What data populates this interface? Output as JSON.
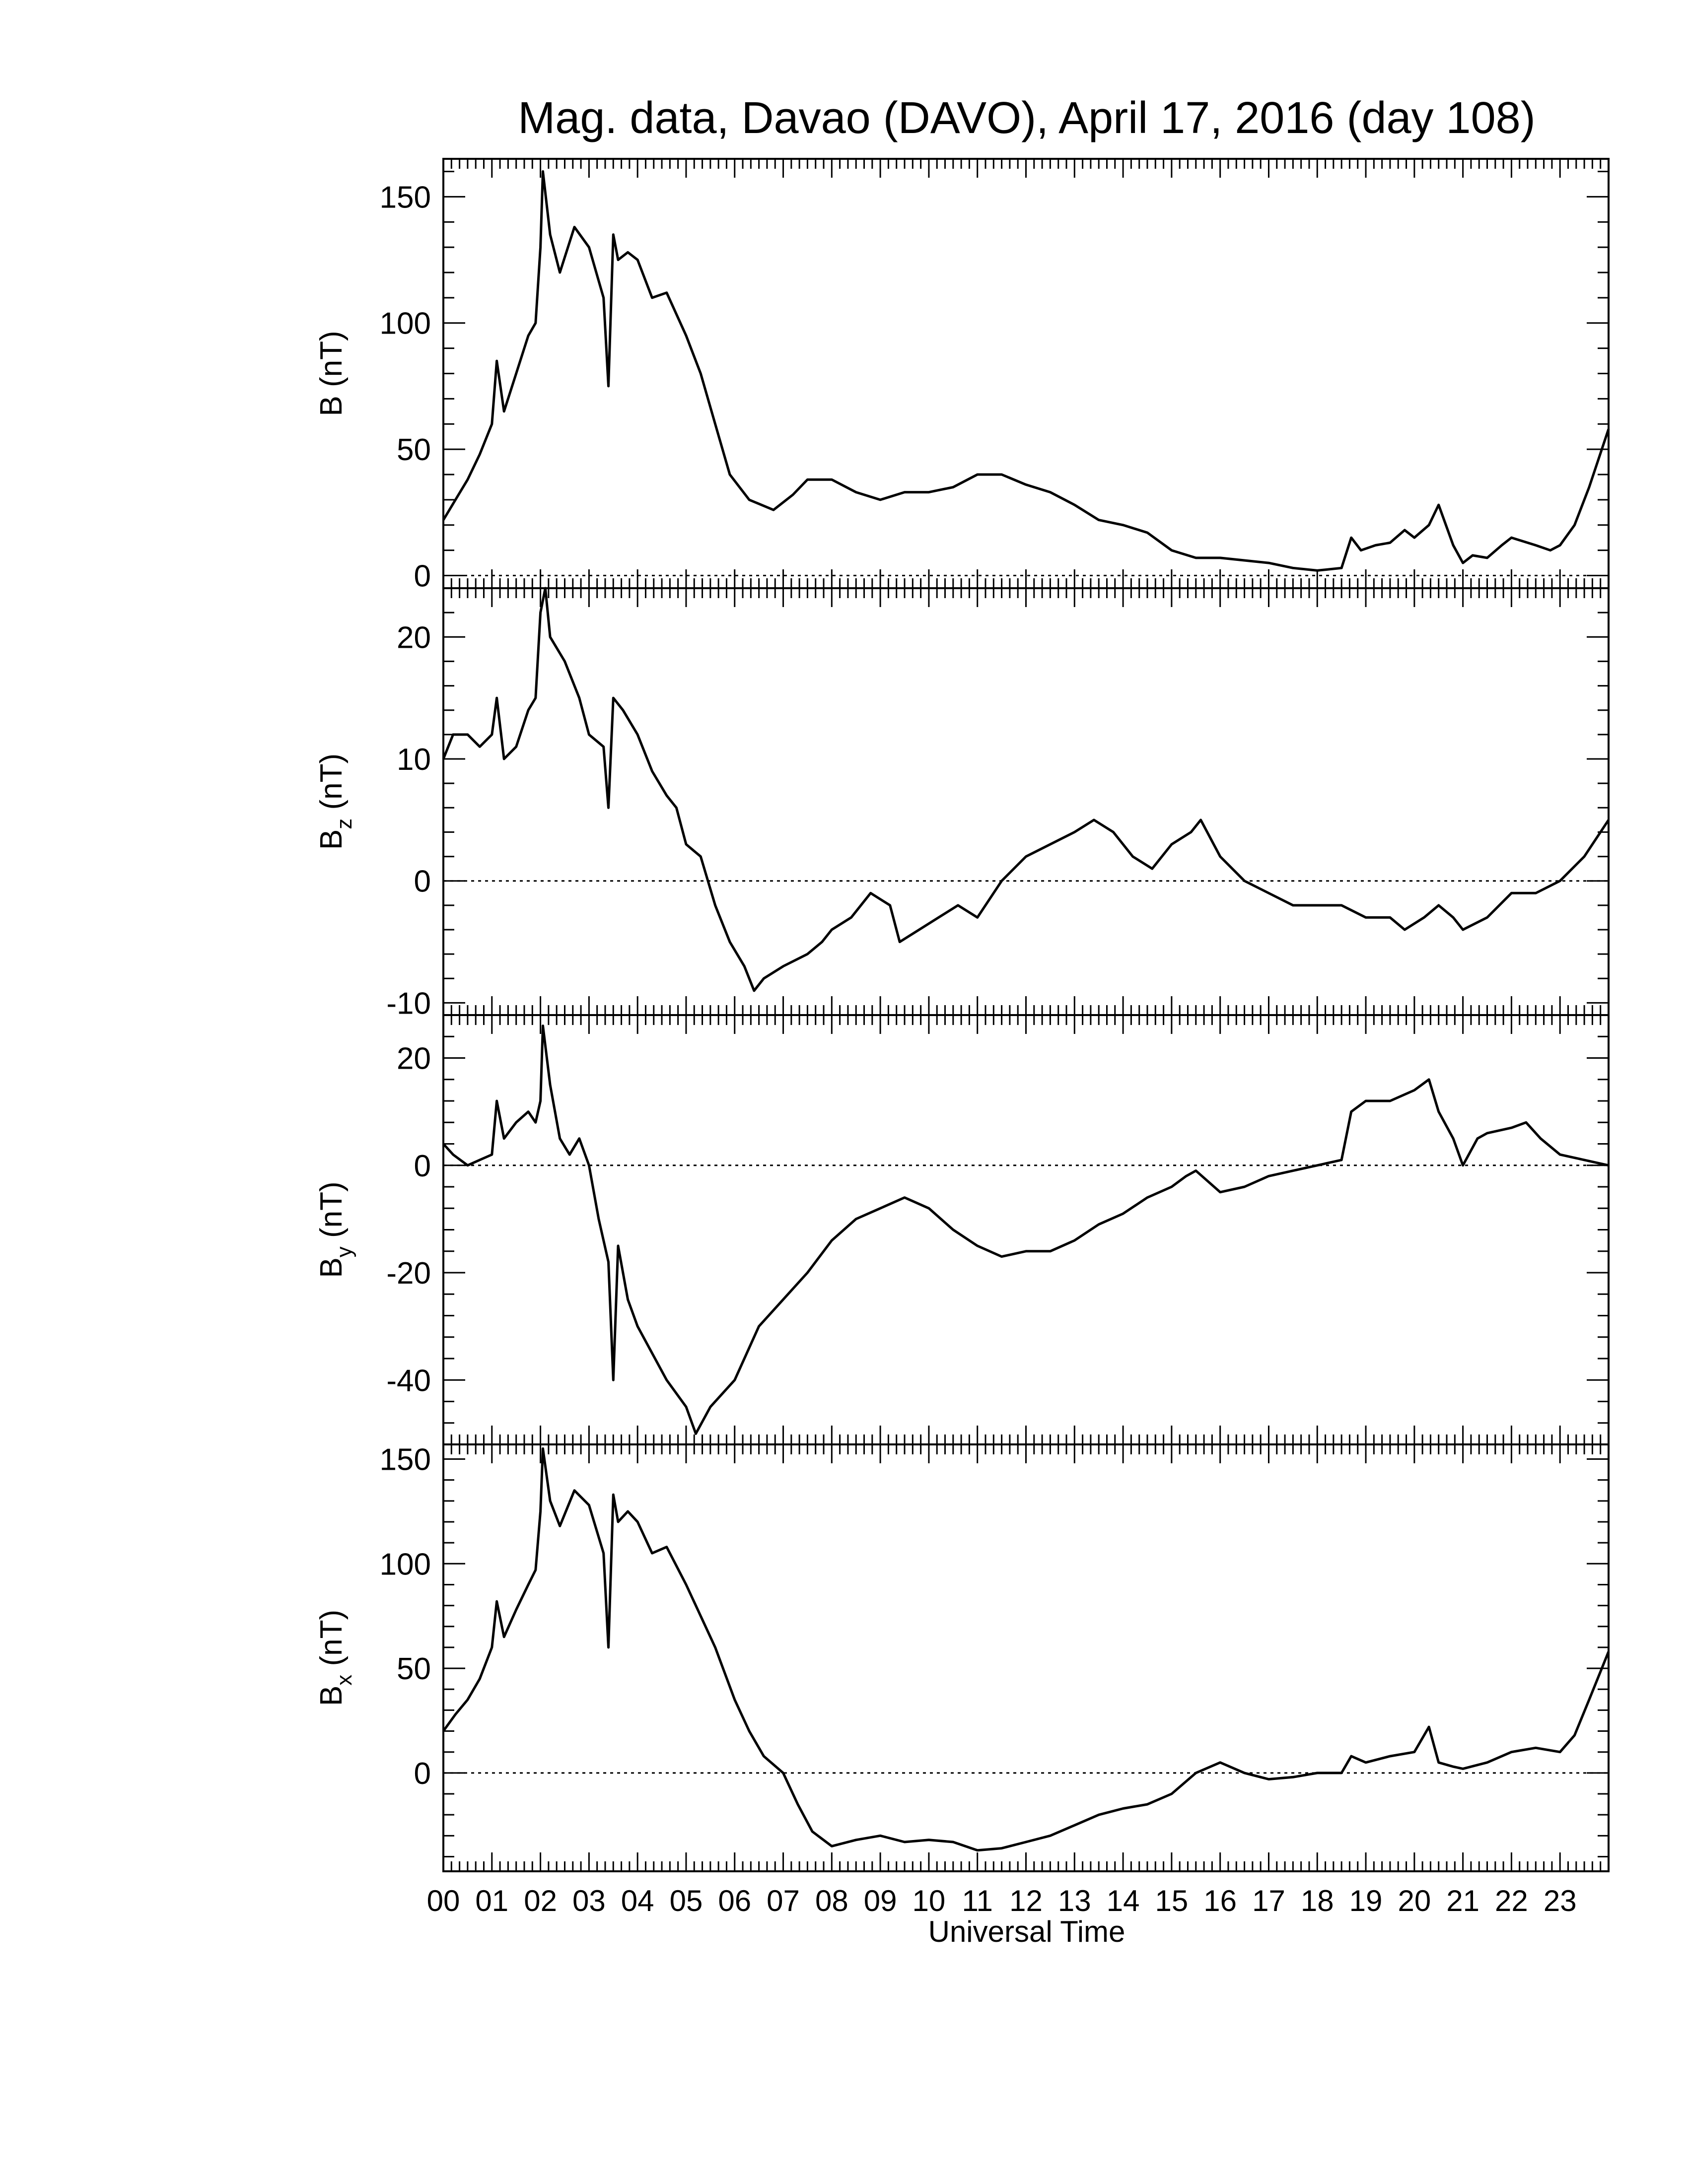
{
  "title": "Mag. data, Davao (DAVO), April 17, 2016 (day 108)",
  "xlabel": "Universal Time",
  "x_tick_labels": [
    "00",
    "01",
    "02",
    "03",
    "04",
    "05",
    "06",
    "07",
    "08",
    "09",
    "10",
    "11",
    "12",
    "13",
    "14",
    "15",
    "16",
    "17",
    "18",
    "19",
    "20",
    "21",
    "22",
    "23"
  ],
  "colors": {
    "line": "#000000",
    "zero_line": "#000000",
    "background": "#ffffff"
  },
  "chart_data": [
    {
      "type": "line",
      "ylabel": "B (nT)",
      "ylabel_main": "B",
      "ylabel_sub": "",
      "ylabel_unit": " (nT)",
      "xlim": [
        0,
        24
      ],
      "ylim": [
        -5,
        165
      ],
      "yticks": [
        0,
        50,
        100,
        150
      ],
      "ytick_labels": [
        "0",
        "50",
        "100",
        "150"
      ],
      "zero_line": true,
      "x": [
        0,
        0.25,
        0.5,
        0.75,
        1.0,
        1.1,
        1.25,
        1.5,
        1.75,
        1.9,
        2.0,
        2.05,
        2.2,
        2.4,
        2.7,
        3.0,
        3.3,
        3.4,
        3.5,
        3.6,
        3.8,
        4.0,
        4.3,
        4.6,
        5.0,
        5.3,
        5.6,
        5.9,
        6.3,
        6.8,
        7.2,
        7.5,
        8.0,
        8.5,
        9.0,
        9.5,
        10.0,
        10.5,
        11.0,
        11.5,
        12.0,
        12.5,
        13.0,
        13.5,
        14.0,
        14.5,
        15.0,
        15.5,
        16.0,
        16.5,
        17.0,
        17.5,
        18.0,
        18.5,
        18.7,
        18.9,
        19.2,
        19.5,
        19.8,
        20.0,
        20.3,
        20.5,
        20.8,
        21.0,
        21.2,
        21.5,
        21.8,
        22.0,
        22.5,
        22.8,
        23.0,
        23.3,
        23.6,
        24.0
      ],
      "y": [
        22,
        30,
        38,
        48,
        60,
        85,
        65,
        80,
        95,
        100,
        130,
        160,
        135,
        120,
        138,
        130,
        110,
        75,
        135,
        125,
        128,
        125,
        110,
        112,
        95,
        80,
        60,
        40,
        30,
        26,
        32,
        38,
        38,
        33,
        30,
        33,
        33,
        35,
        40,
        40,
        36,
        33,
        28,
        22,
        20,
        17,
        10,
        7,
        7,
        6,
        5,
        3,
        2,
        3,
        15,
        10,
        12,
        13,
        18,
        15,
        20,
        28,
        12,
        5,
        8,
        7,
        12,
        15,
        12,
        10,
        12,
        20,
        35,
        58
      ]
    },
    {
      "type": "line",
      "ylabel": "Bz (nT)",
      "ylabel_main": "B",
      "ylabel_sub": "z",
      "ylabel_unit": " (nT)",
      "xlim": [
        0,
        24
      ],
      "ylim": [
        -11,
        24
      ],
      "yticks": [
        -10,
        0,
        10,
        20
      ],
      "ytick_labels": [
        "-10",
        "0",
        "10",
        "20"
      ],
      "zero_line": true,
      "x": [
        0,
        0.2,
        0.5,
        0.75,
        1.0,
        1.1,
        1.25,
        1.5,
        1.75,
        1.9,
        2.0,
        2.1,
        2.2,
        2.5,
        2.8,
        3.0,
        3.3,
        3.4,
        3.5,
        3.7,
        4.0,
        4.3,
        4.6,
        4.8,
        5.0,
        5.3,
        5.6,
        5.9,
        6.2,
        6.4,
        6.6,
        7.0,
        7.5,
        7.8,
        8.0,
        8.4,
        8.8,
        9.2,
        9.4,
        9.8,
        10.2,
        10.6,
        11.0,
        11.5,
        12.0,
        12.5,
        13.0,
        13.4,
        13.8,
        14.2,
        14.6,
        15.0,
        15.4,
        15.6,
        16.0,
        16.5,
        17.0,
        17.5,
        18.0,
        18.5,
        19.0,
        19.5,
        19.8,
        20.2,
        20.5,
        20.8,
        21.0,
        21.5,
        22.0,
        22.5,
        23.0,
        23.5,
        24.0
      ],
      "y": [
        10,
        12,
        12,
        11,
        12,
        15,
        10,
        11,
        14,
        15,
        22,
        24,
        20,
        18,
        15,
        12,
        11,
        6,
        15,
        14,
        12,
        9,
        7,
        6,
        3,
        2,
        -2,
        -5,
        -7,
        -9,
        -8,
        -7,
        -6,
        -5,
        -4,
        -3,
        -1,
        -2,
        -5,
        -4,
        -3,
        -2,
        -3,
        0,
        2,
        3,
        4,
        5,
        4,
        2,
        1,
        3,
        4,
        5,
        2,
        0,
        -1,
        -2,
        -2,
        -2,
        -3,
        -3,
        -4,
        -3,
        -2,
        -3,
        -4,
        -3,
        -1,
        -1,
        0,
        2,
        5
      ]
    },
    {
      "type": "line",
      "ylabel": "By (nT)",
      "ylabel_main": "B",
      "ylabel_sub": "y",
      "ylabel_unit": " (nT)",
      "xlim": [
        0,
        24
      ],
      "ylim": [
        -52,
        28
      ],
      "yticks": [
        -40,
        -20,
        0,
        20
      ],
      "ytick_labels": [
        "-40",
        "-20",
        "0",
        "20"
      ],
      "zero_line": true,
      "x": [
        0,
        0.2,
        0.5,
        0.75,
        1.0,
        1.1,
        1.25,
        1.5,
        1.75,
        1.9,
        2.0,
        2.05,
        2.2,
        2.4,
        2.6,
        2.8,
        3.0,
        3.2,
        3.4,
        3.5,
        3.6,
        3.8,
        4.0,
        4.3,
        4.6,
        5.0,
        5.2,
        5.5,
        6.0,
        6.5,
        7.0,
        7.5,
        8.0,
        8.5,
        9.0,
        9.5,
        10.0,
        10.5,
        11.0,
        11.5,
        12.0,
        12.5,
        13.0,
        13.5,
        14.0,
        14.5,
        15.0,
        15.3,
        15.5,
        16.0,
        16.5,
        17.0,
        17.5,
        18.0,
        18.5,
        18.7,
        19.0,
        19.5,
        20.0,
        20.3,
        20.5,
        20.8,
        21.0,
        21.3,
        21.5,
        22.0,
        22.3,
        22.6,
        23.0,
        23.5,
        24.0
      ],
      "y": [
        4,
        2,
        0,
        1,
        2,
        12,
        5,
        8,
        10,
        8,
        12,
        26,
        15,
        5,
        2,
        5,
        0,
        -10,
        -18,
        -40,
        -15,
        -25,
        -30,
        -35,
        -40,
        -45,
        -50,
        -45,
        -40,
        -30,
        -25,
        -20,
        -14,
        -10,
        -8,
        -6,
        -8,
        -12,
        -15,
        -17,
        -16,
        -16,
        -14,
        -11,
        -9,
        -6,
        -4,
        -2,
        -1,
        -5,
        -4,
        -2,
        -1,
        0,
        1,
        10,
        12,
        12,
        14,
        16,
        10,
        5,
        0,
        5,
        6,
        7,
        8,
        5,
        2,
        1,
        0
      ]
    },
    {
      "type": "line",
      "ylabel": "Bx (nT)",
      "ylabel_main": "B",
      "ylabel_sub": "x",
      "ylabel_unit": " (nT)",
      "xlim": [
        0,
        24
      ],
      "ylim": [
        -47,
        157
      ],
      "yticks": [
        0,
        50,
        100,
        150
      ],
      "ytick_labels": [
        "0",
        "50",
        "100",
        "150"
      ],
      "zero_line": true,
      "x": [
        0,
        0.25,
        0.5,
        0.75,
        1.0,
        1.1,
        1.25,
        1.5,
        1.75,
        1.9,
        2.0,
        2.05,
        2.2,
        2.4,
        2.7,
        3.0,
        3.3,
        3.4,
        3.5,
        3.6,
        3.8,
        4.0,
        4.3,
        4.6,
        5.0,
        5.3,
        5.6,
        6.0,
        6.3,
        6.6,
        7.0,
        7.3,
        7.6,
        8.0,
        8.5,
        9.0,
        9.5,
        10.0,
        10.5,
        11.0,
        11.5,
        12.0,
        12.5,
        13.0,
        13.5,
        14.0,
        14.5,
        15.0,
        15.5,
        16.0,
        16.5,
        17.0,
        17.5,
        18.0,
        18.5,
        18.7,
        19.0,
        19.5,
        20.0,
        20.3,
        20.5,
        20.8,
        21.0,
        21.5,
        22.0,
        22.5,
        23.0,
        23.3,
        23.6,
        24.0
      ],
      "y": [
        20,
        28,
        35,
        45,
        60,
        82,
        65,
        78,
        90,
        97,
        125,
        155,
        130,
        118,
        135,
        128,
        105,
        60,
        133,
        120,
        125,
        120,
        105,
        108,
        90,
        75,
        60,
        35,
        20,
        8,
        0,
        -15,
        -28,
        -35,
        -32,
        -30,
        -33,
        -32,
        -33,
        -37,
        -36,
        -33,
        -30,
        -25,
        -20,
        -17,
        -15,
        -10,
        0,
        5,
        0,
        -3,
        -2,
        0,
        0,
        8,
        5,
        8,
        10,
        22,
        5,
        3,
        2,
        5,
        10,
        12,
        10,
        18,
        35,
        58
      ]
    }
  ]
}
